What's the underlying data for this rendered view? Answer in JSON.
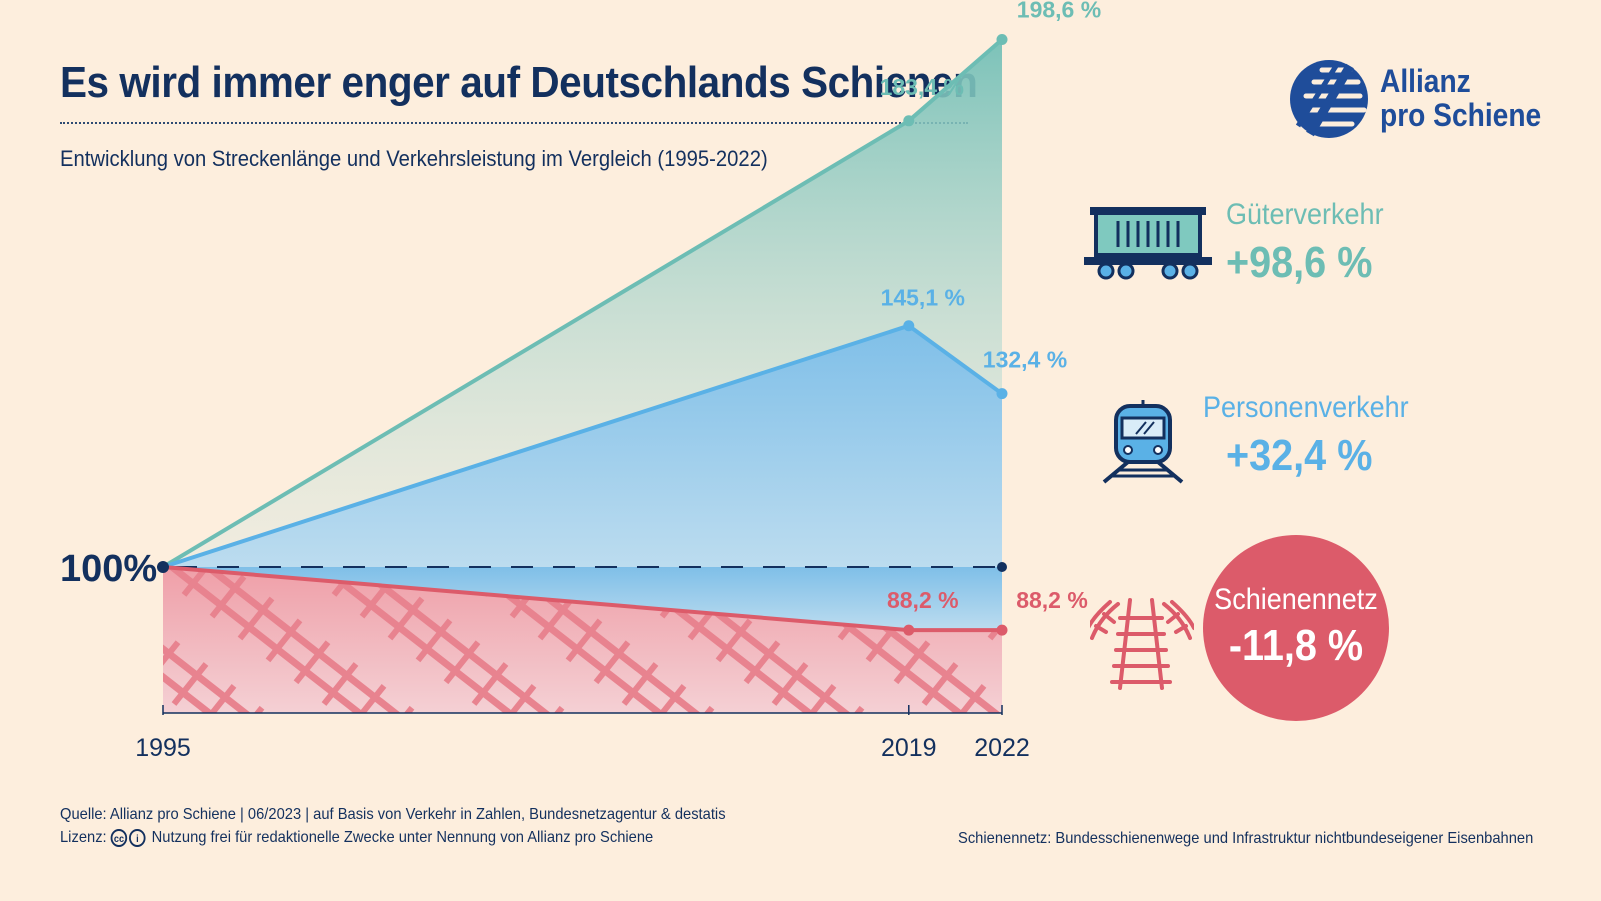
{
  "header": {
    "title": "Es wird immer enger auf Deutschlands Schienen",
    "subtitle": "Entwicklung von Streckenlänge und Verkehrsleistung im Vergleich (1995-2022)"
  },
  "logo": {
    "line1": "Allianz",
    "line2": "pro Schiene"
  },
  "chart_data": {
    "type": "line",
    "categories": [
      "1995",
      "2019",
      "2022"
    ],
    "x_positions": [
      1995,
      2019,
      2022
    ],
    "baseline_label": "100%",
    "ylim": [
      70,
      210
    ],
    "series": [
      {
        "name": "Güterverkehr",
        "values": [
          100,
          183.4,
          198.6
        ],
        "labels": [
          "",
          "183,4 %",
          "198,6 %"
        ],
        "color": "#6dbdb4",
        "change": "+98,6 %"
      },
      {
        "name": "Personenverkehr",
        "values": [
          100,
          145.1,
          132.4
        ],
        "labels": [
          "",
          "145,1 %",
          "132,4 %"
        ],
        "color": "#5ab1e6",
        "change": "+32,4 %"
      },
      {
        "name": "Schienennetz",
        "values": [
          100,
          88.2,
          88.2
        ],
        "labels": [
          "",
          "88,2 %",
          "88,2 %"
        ],
        "color": "#dc5b6a",
        "change": "-11,8 %"
      }
    ]
  },
  "legend": {
    "freight": {
      "name": "Güterverkehr",
      "value": "+98,6 %",
      "color": "#6dbdb4",
      "icon": "freight-wagon-icon"
    },
    "passenger": {
      "name": "Personenverkehr",
      "value": "+32,4 %",
      "color": "#5ab1e6",
      "icon": "passenger-train-icon"
    },
    "network": {
      "name": "Schienennetz",
      "value": "-11,8 %",
      "color": "#dc5b6a",
      "icon": "rail-track-icon"
    }
  },
  "footer": {
    "source": "Quelle: Allianz pro Schiene | 06/2023 | auf Basis von Verkehr in Zahlen, Bundesnetzagentur & destatis",
    "license_label": "Lizenz:",
    "license_text": "Nutzung frei für redaktionelle Zwecke unter Nennung von Allianz pro Schiene",
    "note": "Schienennetz: Bundesschienenwege und Infrastruktur nichtbundeseigener Eisenbahnen"
  }
}
